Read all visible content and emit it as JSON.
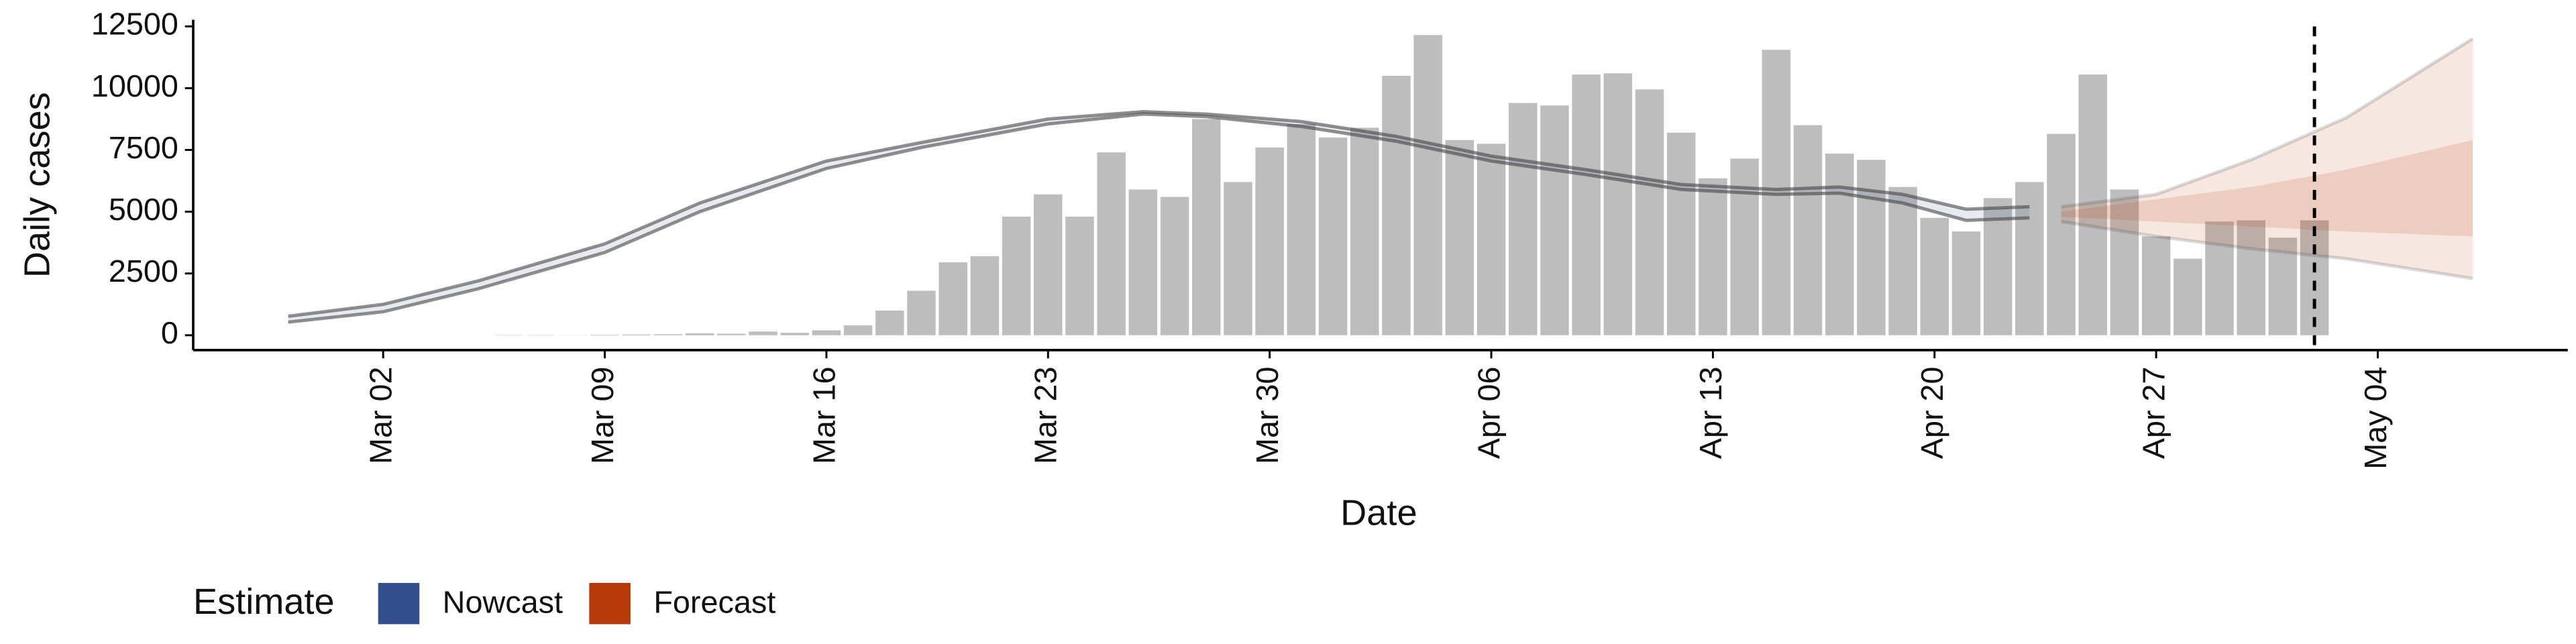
{
  "chart_data": {
    "type": "bar",
    "x_label": "Date",
    "y_label": "Daily cases",
    "xlim": [
      "Feb 24",
      "May 10"
    ],
    "xticks": [
      "Mar 02",
      "Mar 09",
      "Mar 16",
      "Mar 23",
      "Mar 30",
      "Apr 06",
      "Apr 13",
      "Apr 20",
      "Apr 27",
      "May 04"
    ],
    "ylim": [
      -600,
      13100
    ],
    "yticks": [
      0,
      2500,
      5000,
      7500,
      10000,
      12500
    ],
    "vline": "May 02",
    "legend_title": "Estimate",
    "legend_position": "bottom",
    "bars": {
      "color": "#bdbdbd",
      "x": [
        "Mar 06",
        "Mar 07",
        "Mar 08",
        "Mar 09",
        "Mar 10",
        "Mar 11",
        "Mar 12",
        "Mar 13",
        "Mar 14",
        "Mar 15",
        "Mar 16",
        "Mar 17",
        "Mar 18",
        "Mar 19",
        "Mar 20",
        "Mar 21",
        "Mar 22",
        "Mar 23",
        "Mar 24",
        "Mar 25",
        "Mar 26",
        "Mar 27",
        "Mar 28",
        "Mar 29",
        "Mar 30",
        "Mar 31",
        "Apr 01",
        "Apr 02",
        "Apr 03",
        "Apr 04",
        "Apr 05",
        "Apr 06",
        "Apr 07",
        "Apr 08",
        "Apr 09",
        "Apr 10",
        "Apr 11",
        "Apr 12",
        "Apr 13",
        "Apr 14",
        "Apr 15",
        "Apr 16",
        "Apr 17",
        "Apr 18",
        "Apr 19",
        "Apr 20",
        "Apr 21",
        "Apr 22",
        "Apr 23",
        "Apr 24",
        "Apr 25",
        "Apr 26",
        "Apr 27",
        "Apr 28",
        "Apr 29",
        "Apr 30",
        "May 01",
        "May 02"
      ],
      "values": [
        10,
        10,
        5,
        20,
        30,
        40,
        80,
        60,
        150,
        100,
        200,
        400,
        1000,
        1800,
        2950,
        3200,
        4800,
        5700,
        4800,
        7400,
        5900,
        5600,
        8750,
        6200,
        7600,
        8550,
        8000,
        8400,
        10500,
        12150,
        7900,
        7750,
        9400,
        9300,
        10550,
        10600,
        9950,
        8200,
        6350,
        7150,
        11550,
        8500,
        7350,
        7100,
        6000,
        4750,
        4200,
        5550,
        6200,
        8150,
        10550,
        5900,
        4000,
        3100,
        4600,
        4650,
        3950,
        4650
      ]
    },
    "series": [
      {
        "name": "Nowcast",
        "color": "#334f8d",
        "x": [
          "Feb 27",
          "Mar 02",
          "Mar 05",
          "Mar 09",
          "Mar 12",
          "Mar 16",
          "Mar 19",
          "Mar 23",
          "Mar 26",
          "Mar 28",
          "Mar 31",
          "Apr 03",
          "Apr 06",
          "Apr 09",
          "Apr 12",
          "Apr 15",
          "Apr 17",
          "Apr 19",
          "Apr 21",
          "Apr 23"
        ],
        "lower": [
          530,
          950,
          1880,
          3350,
          5000,
          6750,
          7600,
          8550,
          8950,
          8850,
          8450,
          7850,
          7050,
          6500,
          5900,
          5700,
          5750,
          5350,
          4650,
          4750
        ],
        "upper": [
          770,
          1250,
          2200,
          3700,
          5350,
          7050,
          7800,
          8750,
          9050,
          8950,
          8650,
          8050,
          7250,
          6700,
          6100,
          5900,
          6000,
          5700,
          5100,
          5200
        ]
      },
      {
        "name": "Forecast",
        "color": "#b53a0a",
        "x": [
          "Apr 24",
          "Apr 27",
          "Apr 30",
          "May 03",
          "May 07"
        ],
        "lower": [
          4600,
          4000,
          3500,
          3100,
          2300
        ],
        "upper": [
          5200,
          5700,
          7100,
          8800,
          12000
        ],
        "inner_lower": [
          4800,
          4600,
          4400,
          4200,
          4000
        ],
        "inner_upper": [
          5000,
          5500,
          6000,
          6700,
          7900
        ]
      }
    ]
  }
}
